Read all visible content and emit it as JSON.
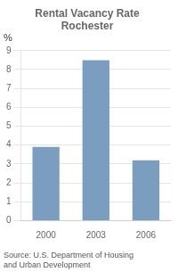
{
  "chart_data": {
    "type": "bar",
    "title": "Rental Vacancy Rate\nRochester",
    "categories": [
      "2000",
      "2003",
      "2006"
    ],
    "values": [
      3.9,
      8.5,
      3.2
    ],
    "color": "#7B9DC0",
    "ylabel": "%",
    "ylim": [
      0,
      9
    ],
    "yticks": [
      0,
      1,
      2,
      3,
      4,
      5,
      6,
      7,
      8,
      9
    ],
    "grid": true,
    "annotations": [
      "Source: U.S. Department of Housing\nand Urban Development"
    ]
  }
}
